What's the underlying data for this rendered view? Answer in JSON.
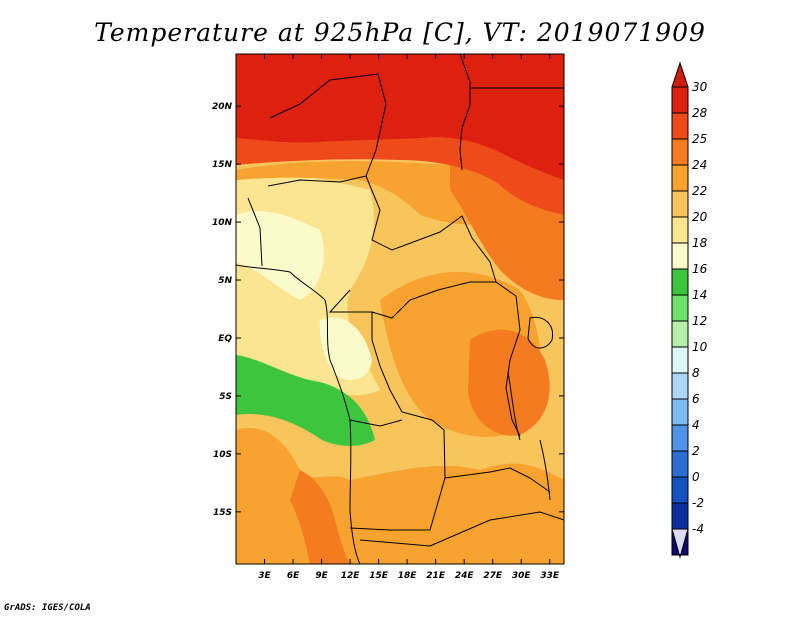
{
  "title": "Temperature at 925hPa [C], VT: 2019071909",
  "credit": "GrADS: IGES/COLA",
  "map": {
    "lon_range": [
      0,
      34.5
    ],
    "lat_range": [
      -19.5,
      24.5
    ],
    "lat_ticks": [
      {
        "label": "20N",
        "value": 20
      },
      {
        "label": "15N",
        "value": 15
      },
      {
        "label": "10N",
        "value": 10
      },
      {
        "label": "5N",
        "value": 5
      },
      {
        "label": "EQ",
        "value": 0
      },
      {
        "label": "5S",
        "value": -5
      },
      {
        "label": "10S",
        "value": -10
      },
      {
        "label": "15S",
        "value": -15
      }
    ],
    "lon_ticks": [
      {
        "label": "3E",
        "value": 3
      },
      {
        "label": "6E",
        "value": 6
      },
      {
        "label": "9E",
        "value": 9
      },
      {
        "label": "12E",
        "value": 12
      },
      {
        "label": "15E",
        "value": 15
      },
      {
        "label": "18E",
        "value": 18
      },
      {
        "label": "21E",
        "value": 21
      },
      {
        "label": "24E",
        "value": 24
      },
      {
        "label": "27E",
        "value": 27
      },
      {
        "label": "30E",
        "value": 30
      },
      {
        "label": "33E",
        "value": 33
      }
    ]
  },
  "colorbar": {
    "levels": [
      "30",
      "28",
      "25",
      "24",
      "22",
      "20",
      "18",
      "16",
      "14",
      "12",
      "10",
      "8",
      "6",
      "4",
      "2",
      "0",
      "-2",
      "-4"
    ],
    "colors": [
      "#dd2010",
      "#ef4a1a",
      "#f57b20",
      "#f8a330",
      "#f8c45c",
      "#fbe590",
      "#fbfacb",
      "#3dc63d",
      "#6de36d",
      "#b5f2a9",
      "#dbf7f7",
      "#abd6f7",
      "#7fbaf2",
      "#4f92e6",
      "#2a6ed6",
      "#1450bf",
      "#0b2f9c",
      "#090e6e"
    ],
    "top_color": "#d21d0e",
    "bottom_color": "#dcdcf6"
  }
}
